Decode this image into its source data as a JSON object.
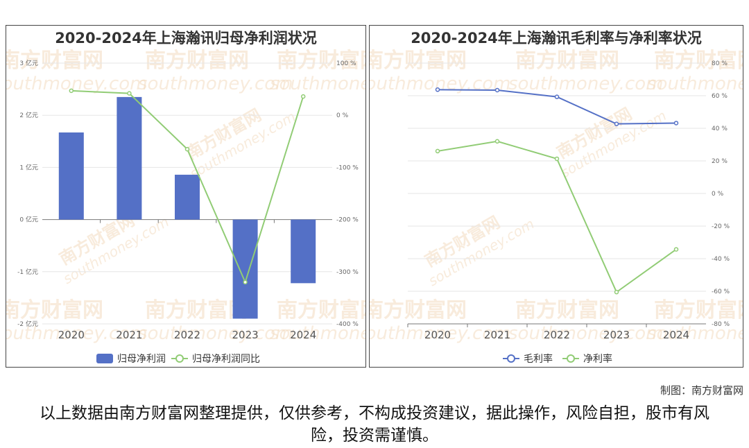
{
  "footer": {
    "credit": "制图：南方财富网",
    "disclaimer": "以上数据由南方财富网整理提供，仅供参考，不构成投资建议，据此操作，风险自担，股市有风险，投资需谨慎。"
  },
  "watermark": {
    "brand": "南方财富网",
    "domain": "southmoney.com"
  },
  "chart_data": [
    {
      "type": "bar+line",
      "title": "2020-2024年上海瀚讯归母净利润状况",
      "categories": [
        "2020",
        "2021",
        "2022",
        "2023",
        "2024"
      ],
      "left_axis": {
        "ylim": [
          -2,
          3
        ],
        "ticks": [
          -2,
          -1,
          0,
          1,
          2,
          3
        ],
        "unit": "亿元",
        "tick_labels": [
          "-2 亿元",
          "-1 亿元",
          "0 亿元",
          "1 亿元",
          "2 亿元",
          "3 亿元"
        ]
      },
      "right_axis": {
        "ylim": [
          -400,
          100
        ],
        "ticks": [
          -400,
          -300,
          -200,
          -100,
          0,
          100
        ],
        "unit": "%",
        "tick_labels": [
          "-400 %",
          "-300 %",
          "-200 %",
          "-100 %",
          "0 %",
          "100 %"
        ]
      },
      "series": [
        {
          "name": "归母净利润",
          "kind": "bar",
          "axis": "left",
          "color": "#5470c6",
          "values": [
            1.67,
            2.35,
            0.86,
            -1.9,
            -1.22
          ]
        },
        {
          "name": "归母净利润同比",
          "kind": "line",
          "axis": "right",
          "color": "#91cc75",
          "values": [
            47,
            42,
            -65,
            -320,
            36
          ]
        }
      ],
      "legend": "bottom-center",
      "grid": true
    },
    {
      "type": "line",
      "title": "2020-2024年上海瀚讯毛利率与净利率状况",
      "categories": [
        "2020",
        "2021",
        "2022",
        "2023",
        "2024"
      ],
      "right_axis": {
        "ylim": [
          -80,
          80
        ],
        "ticks": [
          -80,
          -60,
          -40,
          -20,
          0,
          20,
          40,
          60,
          80
        ],
        "unit": "%",
        "tick_labels": [
          "-80 %",
          "-60 %",
          "-40 %",
          "-20 %",
          "0 %",
          "20 %",
          "40 %",
          "60 %",
          "80 %"
        ]
      },
      "series": [
        {
          "name": "毛利率",
          "kind": "line",
          "axis": "right",
          "color": "#5470c6",
          "values": [
            63.7,
            63.4,
            59.3,
            42.7,
            43.2
          ]
        },
        {
          "name": "净利率",
          "kind": "line",
          "axis": "right",
          "color": "#91cc75",
          "values": [
            26.0,
            32.0,
            21.3,
            -60.5,
            -34.3
          ]
        }
      ],
      "legend": "bottom-center",
      "grid": true
    }
  ]
}
